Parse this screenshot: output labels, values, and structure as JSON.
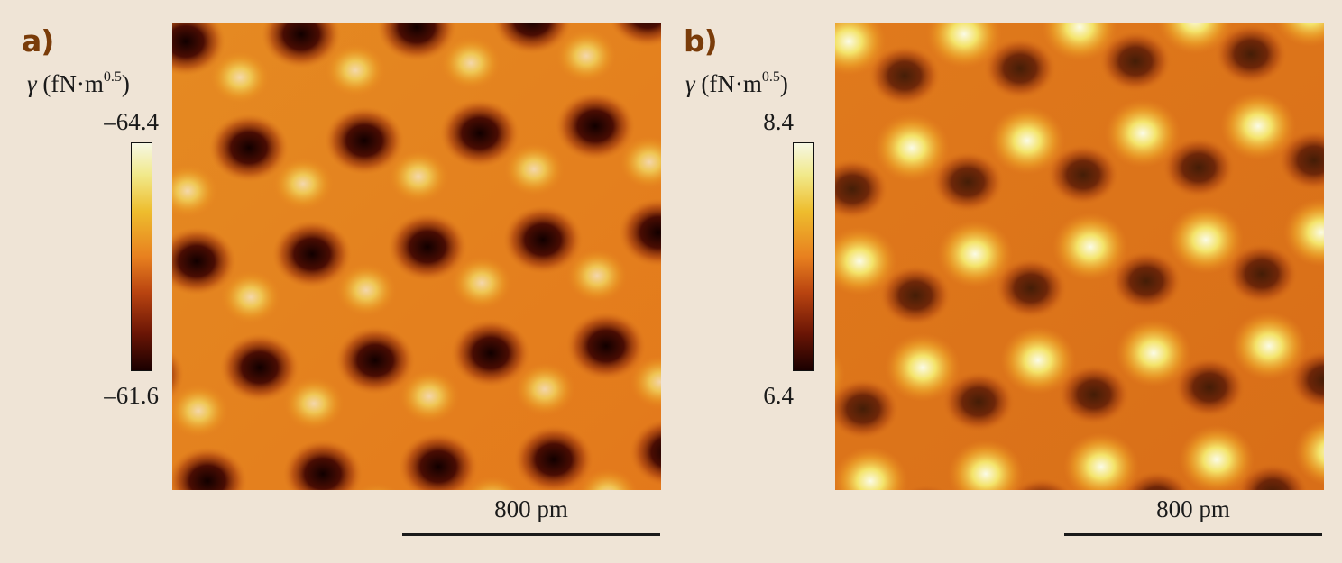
{
  "panels": [
    {
      "letter": "a)",
      "unit_symbol": "γ",
      "unit_text": " (fN·m",
      "unit_exponent": "0.5",
      "unit_close": ")",
      "range_max": "–64.4",
      "range_min": "–61.6",
      "scale_label": "800 pm",
      "features": "dark"
    },
    {
      "letter": "b)",
      "unit_symbol": "γ",
      "unit_text": " (fN·m",
      "unit_exponent": "0.5",
      "unit_close": ")",
      "range_max": "8.4",
      "range_min": "6.4",
      "scale_label": "800 pm",
      "features": "bright"
    }
  ],
  "colors": {
    "background": "#efe4d6",
    "panel_letter": "#7a3c0a",
    "colormap_top": "#f6f7e4",
    "colormap_mid": "#e8801f",
    "colormap_bottom": "#1a0000"
  }
}
